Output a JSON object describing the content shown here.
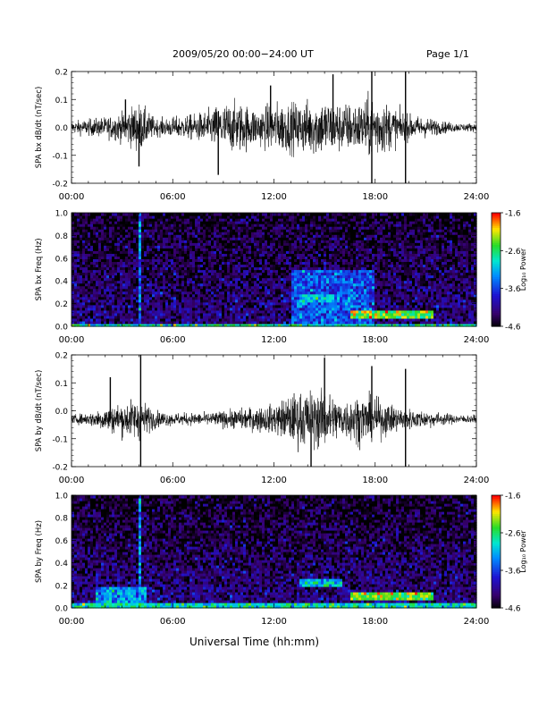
{
  "header": {
    "title": "2009/05/20  00:00−24:00 UT",
    "page": "Page 1/1"
  },
  "xaxis": {
    "label": "Universal Time (hh:mm)",
    "ticks": [
      "00:00",
      "06:00",
      "12:00",
      "18:00",
      "24:00"
    ],
    "range": [
      0,
      24
    ]
  },
  "chart_data": [
    {
      "type": "line",
      "ylabel": "SPA bx dB/dt (nT/sec)",
      "ylim": [
        -0.2,
        0.2
      ],
      "yticks": [
        "-0.2",
        "-0.1",
        "0.0",
        "0.1",
        "0.2"
      ],
      "baseline": 0.0,
      "amplitude_envelope": {
        "x": [
          0,
          1,
          2,
          3,
          4,
          5,
          6,
          7,
          8,
          9,
          10,
          11,
          12,
          13,
          14,
          15,
          16,
          17,
          18,
          19,
          20,
          21,
          22,
          23,
          24
        ],
        "y": [
          0.03,
          0.04,
          0.05,
          0.07,
          0.12,
          0.04,
          0.05,
          0.06,
          0.08,
          0.12,
          0.12,
          0.09,
          0.12,
          0.12,
          0.13,
          0.14,
          0.12,
          0.12,
          0.16,
          0.1,
          0.06,
          0.05,
          0.03,
          0.02,
          0.02
        ]
      },
      "spikes": [
        {
          "x": 3.2,
          "y": 0.1
        },
        {
          "x": 4.0,
          "y": -0.14
        },
        {
          "x": 8.7,
          "y": -0.17
        },
        {
          "x": 11.8,
          "y": 0.15
        },
        {
          "x": 15.5,
          "y": 0.19
        },
        {
          "x": 17.8,
          "y": 0.2
        },
        {
          "x": 17.8,
          "y": -0.2
        },
        {
          "x": 19.8,
          "y": 0.2
        },
        {
          "x": 19.8,
          "y": -0.2
        }
      ]
    },
    {
      "type": "heatmap",
      "ylabel": "SPA bx Freq (Hz)",
      "ylim": [
        0.0,
        1.0
      ],
      "yticks": [
        "0.0",
        "0.2",
        "0.4",
        "0.6",
        "0.8",
        "1.0"
      ],
      "colorbar": {
        "label": "Log₁₀ Power",
        "ticks": [
          "-1.6",
          "-2.6",
          "-3.6",
          "-4.6"
        ],
        "range": [
          -4.6,
          -1.6
        ]
      },
      "features": [
        {
          "x": [
            0,
            24
          ],
          "y": [
            0.0,
            0.03
          ],
          "value": -2.8
        },
        {
          "x": [
            3.9,
            4.2
          ],
          "y": [
            0.0,
            1.0
          ],
          "value": -3.3
        },
        {
          "x": [
            13.5,
            15.5
          ],
          "y": [
            0.22,
            0.28
          ],
          "value": -3.0
        },
        {
          "x": [
            16.5,
            21.5
          ],
          "y": [
            0.08,
            0.14
          ],
          "value": -2.4
        },
        {
          "x": [
            13.0,
            18.0
          ],
          "y": [
            0.0,
            0.5
          ],
          "value": -3.5
        }
      ]
    },
    {
      "type": "line",
      "ylabel": "SPA by dB/dt (nT/sec)",
      "ylim": [
        -0.2,
        0.2
      ],
      "yticks": [
        "-0.2",
        "-0.1",
        "0.0",
        "0.1",
        "0.2"
      ],
      "baseline": -0.03,
      "amplitude_envelope": {
        "x": [
          0,
          1,
          2,
          3,
          4,
          5,
          6,
          7,
          8,
          9,
          10,
          11,
          12,
          13,
          14,
          15,
          16,
          17,
          18,
          19,
          20,
          21,
          22,
          23,
          24
        ],
        "y": [
          0.02,
          0.03,
          0.06,
          0.08,
          0.1,
          0.04,
          0.03,
          0.03,
          0.03,
          0.04,
          0.05,
          0.06,
          0.07,
          0.12,
          0.14,
          0.14,
          0.09,
          0.12,
          0.1,
          0.07,
          0.05,
          0.04,
          0.03,
          0.02,
          0.02
        ]
      },
      "spikes": [
        {
          "x": 2.3,
          "y": 0.12
        },
        {
          "x": 4.1,
          "y": 0.2
        },
        {
          "x": 4.1,
          "y": -0.2
        },
        {
          "x": 14.2,
          "y": -0.2
        },
        {
          "x": 15.0,
          "y": 0.19
        },
        {
          "x": 17.8,
          "y": 0.16
        },
        {
          "x": 19.8,
          "y": 0.15
        },
        {
          "x": 19.8,
          "y": -0.2
        }
      ]
    },
    {
      "type": "heatmap",
      "ylabel": "SPA by Freq (Hz)",
      "ylim": [
        0.0,
        1.0
      ],
      "yticks": [
        "0.0",
        "0.2",
        "0.4",
        "0.6",
        "0.8",
        "1.0"
      ],
      "colorbar": {
        "label": "Log₁₀ Power",
        "ticks": [
          "-1.6",
          "-2.6",
          "-3.6",
          "-4.6"
        ],
        "range": [
          -4.6,
          -1.6
        ]
      },
      "features": [
        {
          "x": [
            0,
            24
          ],
          "y": [
            0.0,
            0.05
          ],
          "value": -2.8
        },
        {
          "x": [
            3.9,
            4.2
          ],
          "y": [
            0.0,
            1.0
          ],
          "value": -3.2
        },
        {
          "x": [
            13.5,
            16.0
          ],
          "y": [
            0.2,
            0.26
          ],
          "value": -3.0
        },
        {
          "x": [
            16.5,
            21.5
          ],
          "y": [
            0.08,
            0.14
          ],
          "value": -2.4
        },
        {
          "x": [
            1.5,
            4.5
          ],
          "y": [
            0.0,
            0.2
          ],
          "value": -3.2
        }
      ]
    }
  ]
}
